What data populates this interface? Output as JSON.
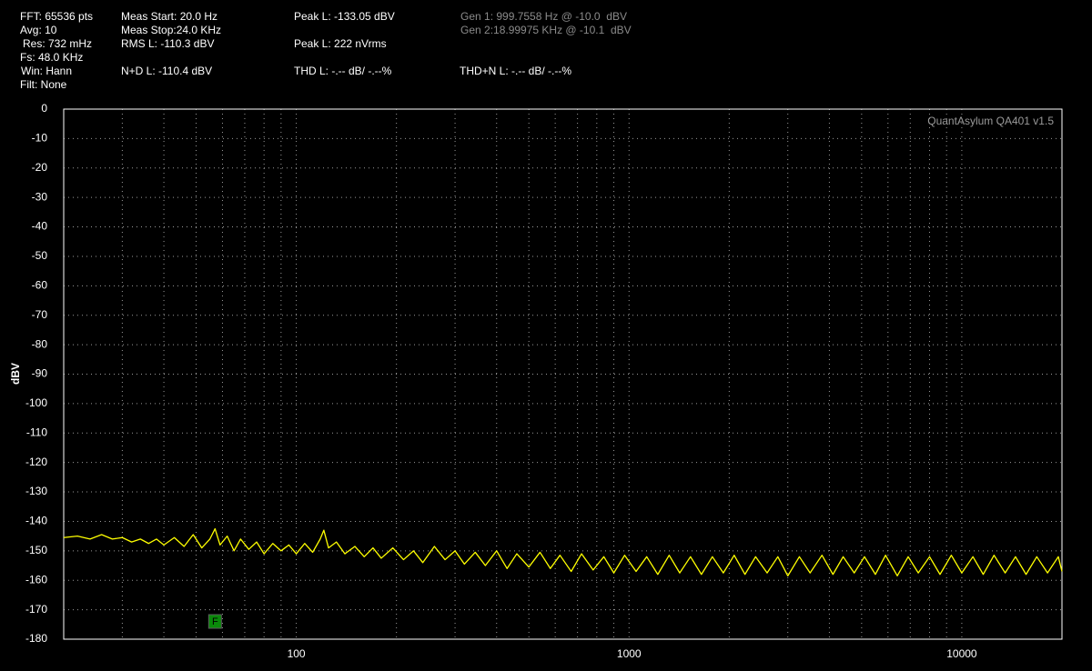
{
  "header": {
    "fft": "FFT: 65536 pts",
    "avg": "Avg: 10",
    "res": "Res: 732 mHz",
    "fs": "Fs: 48.0 KHz",
    "win": "Win: Hann",
    "filt": "Filt: None",
    "meas_start": "Meas Start: 20.0 Hz",
    "meas_stop": "Meas Stop:24.0 KHz",
    "rms": "RMS L: -110.3 dBV",
    "nd": "N+D L: -110.4 dBV",
    "peak_dbv": "Peak L: -133.05 dBV",
    "peak_nv": "Peak L: 222 nVrms",
    "thd": "THD L: -.-- dB/ -.--%",
    "gen1": "Gen 1: 999.7558 Hz @ -10.0  dBV",
    "gen2": "Gen 2:18.99975 KHz @ -10.1  dBV",
    "thdn": "THD+N L: -.-- dB/ -.--%"
  },
  "chart_data": {
    "type": "line",
    "watermark": "QuantAsylum QA401 v1.5",
    "y_label": "dBV",
    "log_x": true,
    "grid": true,
    "color": "#ffff00",
    "xlim": [
      20,
      20000
    ],
    "xticks": [
      100,
      1000,
      10000
    ],
    "xminorticks": [
      30,
      40,
      50,
      60,
      70,
      80,
      90,
      200,
      300,
      400,
      500,
      600,
      700,
      800,
      900,
      2000,
      3000,
      4000,
      5000,
      6000,
      7000,
      8000,
      9000
    ],
    "ylim": [
      -180,
      0
    ],
    "yticks": [
      0,
      -10,
      -20,
      -30,
      -40,
      -50,
      -60,
      -70,
      -80,
      -90,
      -100,
      -110,
      -120,
      -130,
      -140,
      -150,
      -160,
      -170,
      -180
    ],
    "marker": {
      "label": "F",
      "x": 57
    },
    "x": [
      20,
      22,
      24,
      26,
      28,
      30,
      32,
      34,
      36,
      38,
      40,
      43,
      46,
      49,
      52,
      55,
      57,
      59,
      62,
      65,
      68,
      72,
      76,
      80,
      85,
      90,
      95,
      100,
      106,
      112,
      118,
      121,
      125,
      132,
      140,
      150,
      160,
      170,
      180,
      195,
      210,
      225,
      240,
      260,
      280,
      300,
      320,
      345,
      370,
      400,
      430,
      460,
      500,
      540,
      580,
      620,
      670,
      720,
      780,
      840,
      900,
      970,
      1050,
      1130,
      1220,
      1320,
      1420,
      1530,
      1650,
      1780,
      1920,
      2070,
      2230,
      2400,
      2600,
      2800,
      3000,
      3250,
      3500,
      3800,
      4100,
      4400,
      4750,
      5100,
      5500,
      5900,
      6400,
      6900,
      7400,
      8000,
      8600,
      9300,
      10000,
      10800,
      11600,
      12500,
      13500,
      14500,
      15600,
      16800,
      18100,
      19500,
      20000
    ],
    "values": [
      -145.5,
      -145,
      -146,
      -144.5,
      -146,
      -145.5,
      -147,
      -146,
      -147.5,
      -146,
      -148,
      -145.5,
      -148.5,
      -144.5,
      -149,
      -146,
      -142.5,
      -148,
      -145,
      -150,
      -146,
      -149.5,
      -147,
      -151,
      -147.5,
      -150,
      -148,
      -151,
      -147.5,
      -150.5,
      -146,
      -143,
      -149,
      -147,
      -151,
      -148.5,
      -152,
      -149,
      -152.5,
      -149,
      -153,
      -150,
      -154,
      -148.5,
      -153,
      -150,
      -154.5,
      -150.5,
      -155,
      -150,
      -156,
      -151,
      -155.5,
      -150.5,
      -156,
      -151.5,
      -157,
      -151,
      -156.5,
      -152,
      -157.5,
      -151.5,
      -157,
      -152,
      -158,
      -151.5,
      -157.5,
      -152,
      -158,
      -152,
      -157.5,
      -151.5,
      -158,
      -152,
      -157.5,
      -152,
      -158.5,
      -152,
      -157.5,
      -151.5,
      -158,
      -152,
      -157.5,
      -152,
      -158,
      -151.5,
      -158.5,
      -152,
      -157.5,
      -152,
      -158,
      -151.5,
      -157.5,
      -152,
      -158,
      -151.5,
      -157.5,
      -152,
      -158,
      -152,
      -157.5,
      -152,
      -157
    ]
  }
}
